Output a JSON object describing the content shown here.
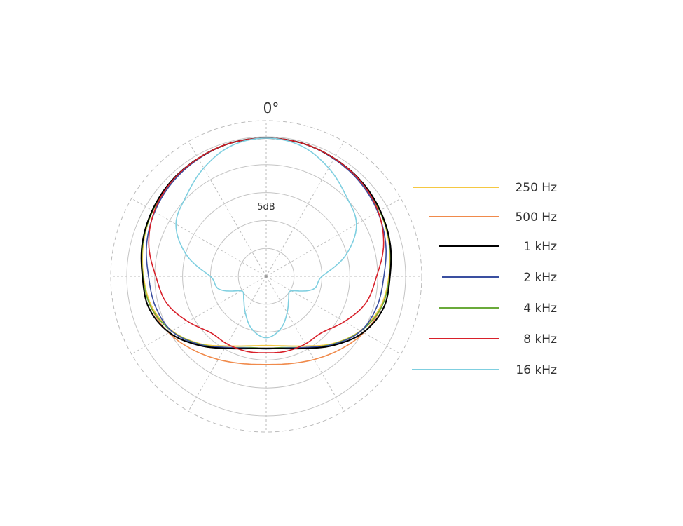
{
  "chart_data": {
    "type": "polar-line",
    "angle_label": "0°",
    "ring_label": "5dB",
    "radial_unit": "dB",
    "radial_range": [
      -25,
      0
    ],
    "ring_step_db": 5,
    "angle_grid_step_deg": 30,
    "symmetric": true,
    "legend_position": "right",
    "angles_deg": [
      0,
      15,
      30,
      45,
      60,
      75,
      90,
      105,
      120,
      135,
      150,
      165,
      180
    ],
    "series": [
      {
        "name": "250 Hz",
        "color": "#f5c842",
        "values": [
          -0.25,
          -0.3,
          -0.6,
          -1.0,
          -1.5,
          -2.2,
          -3.0,
          -3.8,
          -5.5,
          -8.0,
          -10.6,
          -12.1,
          -12.6
        ]
      },
      {
        "name": "500 Hz",
        "color": "#f08a4b",
        "values": [
          -0.25,
          -0.3,
          -0.6,
          -1.0,
          -1.5,
          -2.1,
          -2.9,
          -3.6,
          -4.8,
          -6.4,
          -7.8,
          -8.8,
          -9.2
        ]
      },
      {
        "name": "1 kHz",
        "color": "#000000",
        "values": [
          -0.25,
          -0.3,
          -0.6,
          -0.9,
          -1.4,
          -2.0,
          -2.8,
          -3.2,
          -4.9,
          -7.6,
          -10.1,
          -11.6,
          -12.1
        ]
      },
      {
        "name": "2 kHz",
        "color": "#3a4fa0",
        "values": [
          -0.25,
          -0.3,
          -0.7,
          -1.2,
          -1.9,
          -2.8,
          -3.9,
          -4.4,
          -5.4,
          -7.8,
          -10.3,
          -11.7,
          -12.0
        ]
      },
      {
        "name": "4 kHz",
        "color": "#6aaa3a",
        "values": [
          -0.25,
          -0.3,
          -0.6,
          -1.0,
          -1.5,
          -2.1,
          -2.9,
          -3.6,
          -5.4,
          -7.9,
          -10.3,
          -11.8,
          -12.1
        ]
      },
      {
        "name": "8 kHz",
        "color": "#d8202a",
        "values": [
          -0.25,
          -0.3,
          -0.6,
          -1.0,
          -1.8,
          -3.2,
          -5.2,
          -6.5,
          -8.8,
          -10.8,
          -11.0,
          -11.1,
          -11.3
        ]
      },
      {
        "name": "16 kHz",
        "color": "#7fcfe0",
        "values": [
          -0.25,
          -0.8,
          -2.6,
          -4.7,
          -6.3,
          -10.2,
          -15.0,
          -16.2,
          -19.8,
          -19.3,
          -17.5,
          -15.2,
          -14.0
        ]
      }
    ]
  }
}
